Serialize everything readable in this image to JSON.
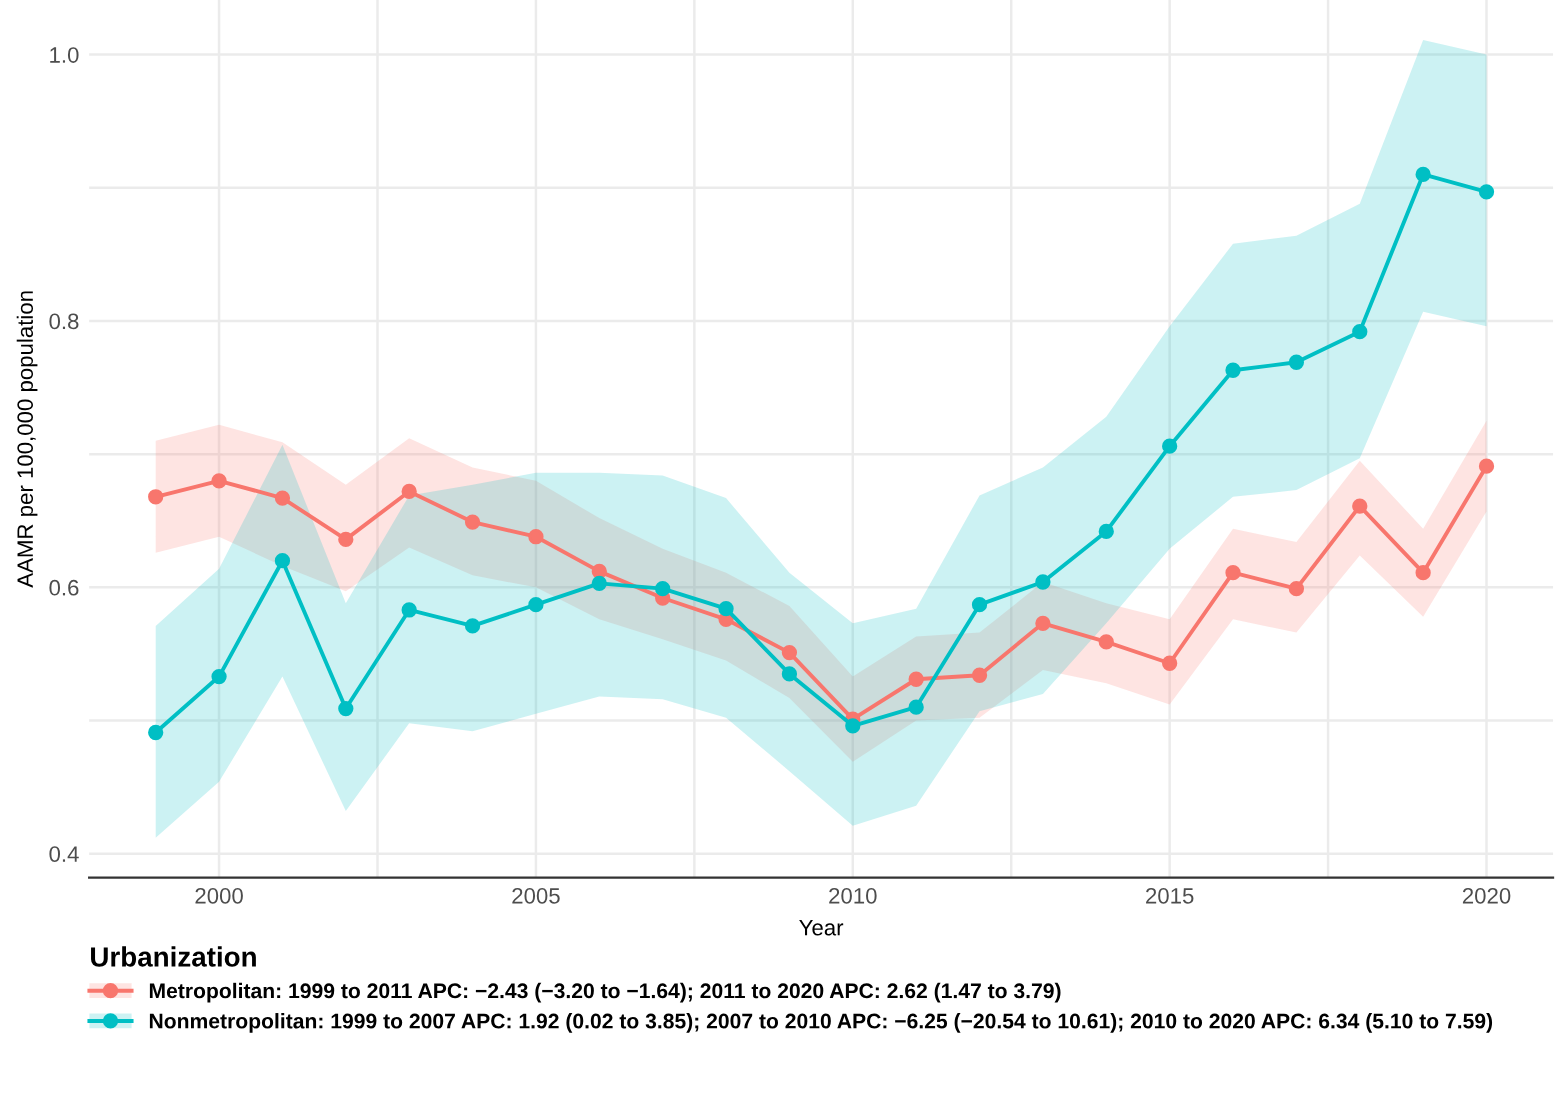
{
  "chart_data": {
    "type": "line",
    "xlabel": "Year",
    "ylabel": "AAMR per 100,000 population",
    "legend_title": "Urbanization",
    "x": [
      1999,
      2000,
      2001,
      2002,
      2003,
      2004,
      2005,
      2006,
      2007,
      2008,
      2009,
      2010,
      2011,
      2012,
      2013,
      2014,
      2015,
      2016,
      2017,
      2018,
      2019,
      2020
    ],
    "series": [
      {
        "name": "Metropolitan: 1999 to 2011 APC: −2.43 (−3.20 to −1.64); 2011 to 2020 APC: 2.62 (1.47 to 3.79)",
        "color": "#f8766d",
        "values": [
          0.668,
          0.68,
          0.667,
          0.636,
          0.672,
          0.649,
          0.638,
          0.612,
          0.592,
          0.576,
          0.551,
          0.501,
          0.531,
          0.534,
          0.573,
          0.559,
          0.543,
          0.611,
          0.599,
          0.661,
          0.611,
          0.691
        ],
        "lower": [
          0.626,
          0.638,
          0.616,
          0.597,
          0.63,
          0.609,
          0.6,
          0.576,
          0.561,
          0.545,
          0.517,
          0.469,
          0.5,
          0.502,
          0.538,
          0.528,
          0.512,
          0.576,
          0.566,
          0.624,
          0.578,
          0.657
        ],
        "upper": [
          0.71,
          0.722,
          0.709,
          0.677,
          0.712,
          0.69,
          0.68,
          0.652,
          0.629,
          0.611,
          0.586,
          0.533,
          0.563,
          0.566,
          0.604,
          0.588,
          0.576,
          0.644,
          0.634,
          0.695,
          0.644,
          0.725
        ]
      },
      {
        "name": "Nonmetropolitan: 1999 to 2007 APC: 1.92 (0.02 to 3.85); 2007 to 2010 APC: −6.25 (−20.54 to 10.61); 2010 to 2020 APC: 6.34 (5.10 to 7.59)",
        "color": "#00bfc4",
        "values": [
          0.491,
          0.533,
          0.62,
          0.509,
          0.583,
          0.571,
          0.587,
          0.603,
          0.599,
          0.584,
          0.535,
          0.496,
          0.51,
          0.587,
          0.604,
          0.642,
          0.706,
          0.763,
          0.769,
          0.792,
          0.91,
          0.897
        ],
        "lower": [
          0.412,
          0.454,
          0.533,
          0.432,
          0.498,
          0.492,
          0.505,
          0.518,
          0.516,
          0.502,
          0.462,
          0.421,
          0.436,
          0.507,
          0.52,
          0.573,
          0.629,
          0.668,
          0.673,
          0.697,
          0.807,
          0.796
        ],
        "upper": [
          0.571,
          0.614,
          0.707,
          0.588,
          0.669,
          0.677,
          0.686,
          0.686,
          0.684,
          0.667,
          0.611,
          0.573,
          0.584,
          0.669,
          0.69,
          0.728,
          0.796,
          0.858,
          0.864,
          0.888,
          1.011,
          1.0
        ]
      }
    ],
    "xlim": [
      1997.95,
      2021.05
    ],
    "ylim": [
      0.382,
      1.041
    ],
    "xticks": [
      2000,
      {
        "value": 2002.5,
        "label": null
      },
      2005,
      {
        "value": 2007.5,
        "label": null
      },
      2010,
      {
        "value": 2012.5,
        "label": null
      },
      2015,
      {
        "value": 2017.5,
        "label": null
      },
      2020
    ],
    "yticks": [
      0.4,
      {
        "value": 0.5,
        "label": null
      },
      0.6,
      {
        "value": 0.7,
        "label": null
      },
      0.8,
      {
        "value": 0.9,
        "label": null
      },
      {
        "value": 1.0,
        "label": "1.0"
      }
    ],
    "grid": true,
    "legend": "bottom",
    "marker": "circle",
    "line_style": "solid"
  }
}
